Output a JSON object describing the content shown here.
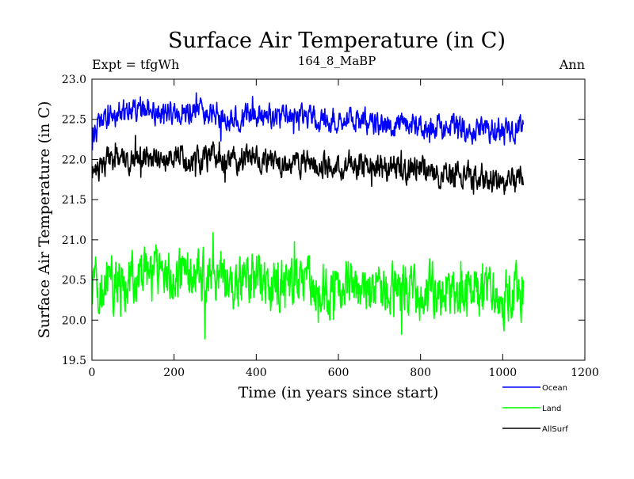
{
  "chart_data": {
    "type": "line",
    "title": "Surface Air Temperature (in C)",
    "subtitle": "164_8_MaBP",
    "header_left": "Expt = tfgWh",
    "header_right": "Ann",
    "xlabel": "Time (in years since start)",
    "ylabel": "Surface Air Temperature (in C)",
    "xlim": [
      0,
      1200
    ],
    "ylim": [
      19.5,
      23.0
    ],
    "x_ticks": [
      0,
      200,
      400,
      600,
      800,
      1000,
      1200
    ],
    "x_tick_labels": [
      "0",
      "200",
      "400",
      "600",
      "800",
      "1000",
      "1200"
    ],
    "y_ticks": [
      19.5,
      20.0,
      20.5,
      21.0,
      21.5,
      22.0,
      22.5,
      23.0
    ],
    "y_tick_labels": [
      "19.5",
      "20.0",
      "20.5",
      "21.0",
      "21.5",
      "22.0",
      "22.5",
      "23.0"
    ],
    "grid": false,
    "legend_position": "bottom-right (outside plot)",
    "x_range": [
      1,
      1050
    ],
    "series": [
      {
        "name": "Ocean",
        "color": "#0000ff",
        "anchors_x": [
          0,
          50,
          100,
          150,
          200,
          250,
          300,
          350,
          400,
          450,
          500,
          550,
          600,
          650,
          700,
          750,
          800,
          850,
          900,
          950,
          1000,
          1050
        ],
        "anchors_y": [
          22.35,
          22.55,
          22.62,
          22.6,
          22.58,
          22.6,
          22.58,
          22.55,
          22.55,
          22.52,
          22.55,
          22.5,
          22.5,
          22.48,
          22.45,
          22.42,
          22.42,
          22.4,
          22.38,
          22.38,
          22.35,
          22.42
        ],
        "noise_amplitude": 0.13,
        "min": 22.05,
        "max": 22.83
      },
      {
        "name": "Land",
        "color": "#00ff00",
        "anchors_x": [
          0,
          50,
          100,
          150,
          200,
          250,
          300,
          350,
          400,
          450,
          500,
          550,
          600,
          650,
          700,
          750,
          800,
          850,
          900,
          950,
          1000,
          1050
        ],
        "anchors_y": [
          20.4,
          20.5,
          20.55,
          20.55,
          20.5,
          20.52,
          20.5,
          20.45,
          20.5,
          20.45,
          20.45,
          20.42,
          20.45,
          20.42,
          20.42,
          20.4,
          20.4,
          20.35,
          20.3,
          20.35,
          20.25,
          20.4
        ],
        "noise_amplitude": 0.28,
        "min": 19.67,
        "max": 21.12
      },
      {
        "name": "AllSurf",
        "color": "#000000",
        "anchors_x": [
          0,
          50,
          100,
          150,
          200,
          250,
          300,
          350,
          400,
          450,
          500,
          550,
          600,
          650,
          700,
          750,
          800,
          850,
          900,
          950,
          1000,
          1050
        ],
        "anchors_y": [
          21.85,
          22.0,
          22.05,
          22.05,
          22.0,
          22.02,
          22.0,
          21.98,
          22.0,
          21.95,
          21.95,
          21.92,
          21.95,
          21.92,
          21.9,
          21.88,
          21.88,
          21.82,
          21.8,
          21.8,
          21.72,
          21.85
        ],
        "noise_amplitude": 0.14,
        "min": 21.4,
        "max": 22.3
      }
    ]
  }
}
